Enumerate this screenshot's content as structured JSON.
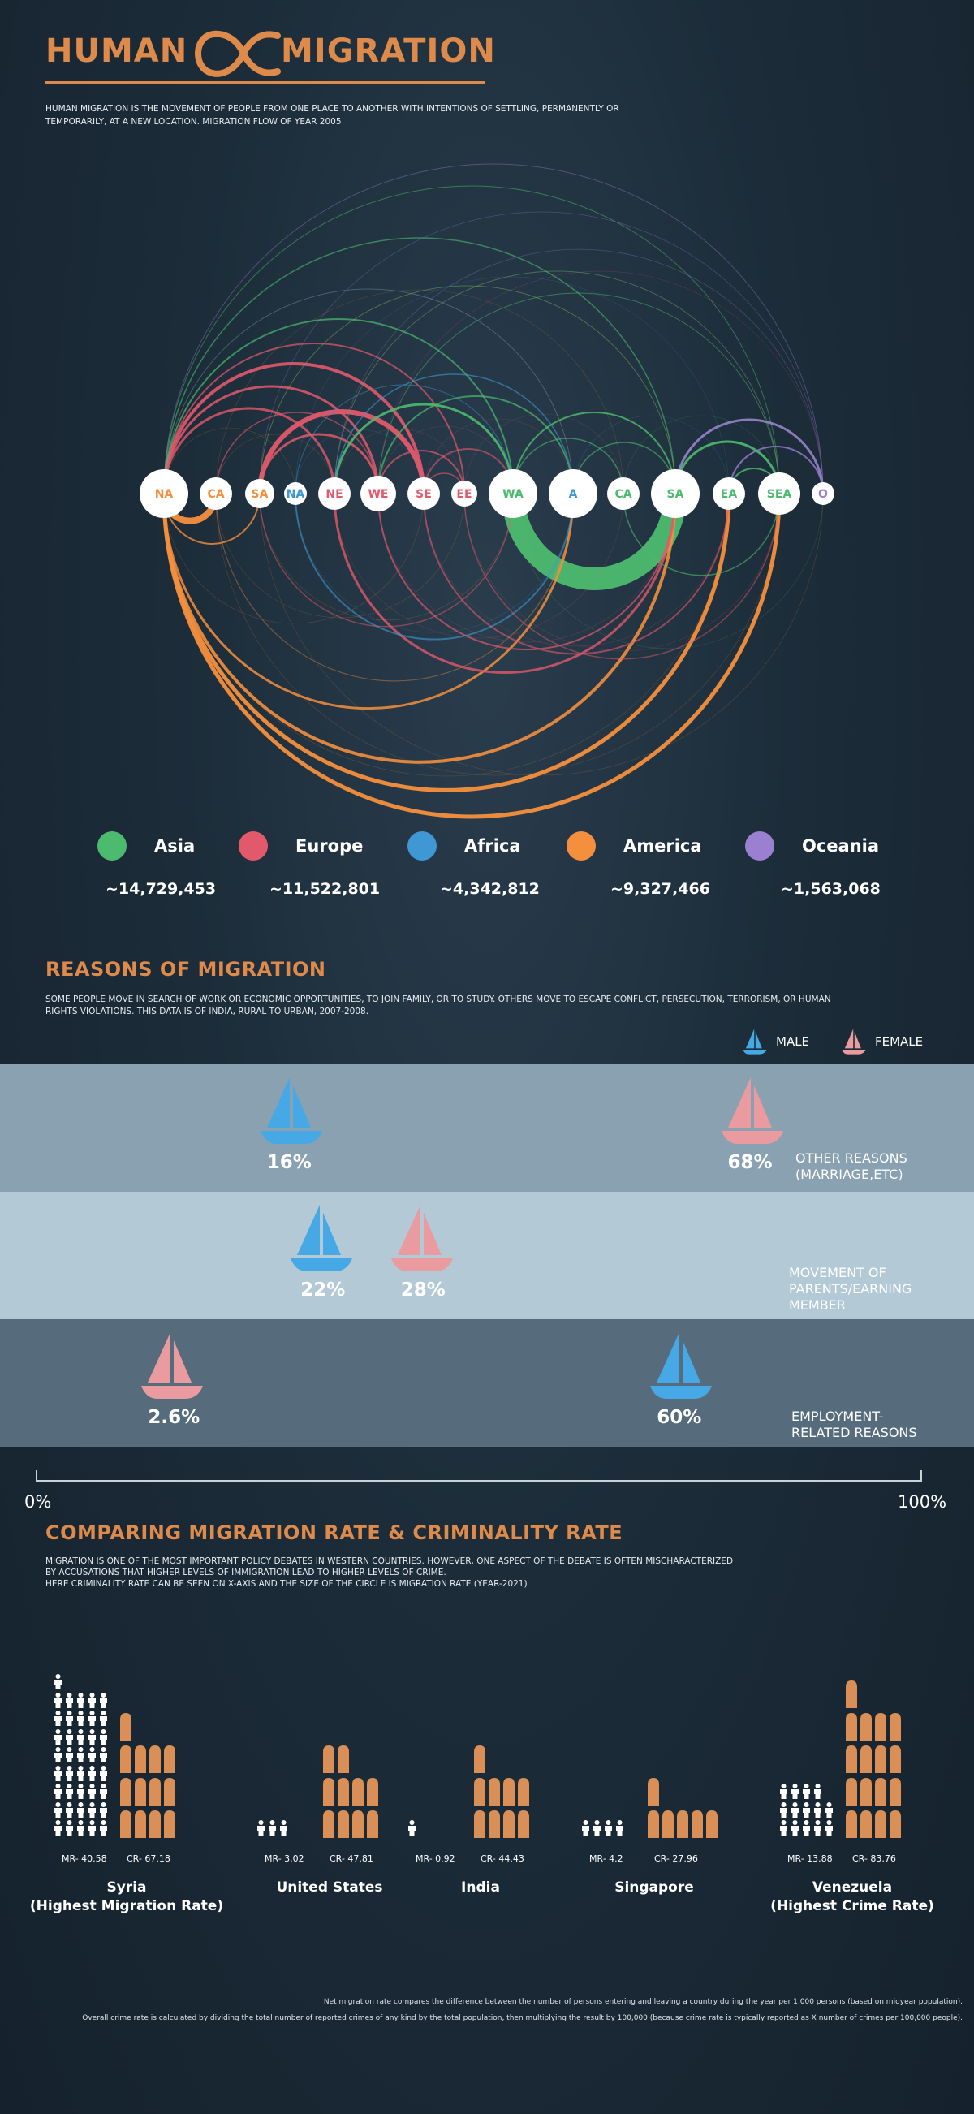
{
  "header": {
    "title_left": "HUMAN",
    "title_right": "MIGRATION",
    "intro": "Human migration is the movement of people from one place to another with intentions of settling, permanently or temporarily, at a new location. Migration flow of year 2005"
  },
  "colors": {
    "asia": "#4dbb6f",
    "europe": "#e2596c",
    "africa": "#3f97d3",
    "america": "#f48f3d",
    "oceania": "#9b7fd0",
    "male_boat": "#46a8e4",
    "female_boat": "#ea9ba0",
    "title_orange": "#de8a4a",
    "band1": "#89a1b1",
    "band2": "#b3c9d6",
    "band3": "#566c7c"
  },
  "chart_data": [
    {
      "type": "arc-diagram",
      "nodes": [
        {
          "label": "NA",
          "region": "america"
        },
        {
          "label": "CA",
          "region": "america"
        },
        {
          "label": "SA",
          "region": "america"
        },
        {
          "label": "NA",
          "region": "africa"
        },
        {
          "label": "NE",
          "region": "europe"
        },
        {
          "label": "WE",
          "region": "europe"
        },
        {
          "label": "SE",
          "region": "europe"
        },
        {
          "label": "EE",
          "region": "europe"
        },
        {
          "label": "WA",
          "region": "asia"
        },
        {
          "label": "A",
          "region": "africa"
        },
        {
          "label": "CA",
          "region": "asia"
        },
        {
          "label": "SA",
          "region": "asia"
        },
        {
          "label": "EA",
          "region": "asia"
        },
        {
          "label": "SEA",
          "region": "asia"
        },
        {
          "label": "O",
          "region": "oceania"
        }
      ],
      "legend": [
        {
          "name": "Asia",
          "total": "~14,729,453",
          "color": "#4dbb6f"
        },
        {
          "name": "Europe",
          "total": "~11,522,801",
          "color": "#e2596c"
        },
        {
          "name": "Africa",
          "total": "~4,342,812",
          "color": "#3f97d3"
        },
        {
          "name": "America",
          "total": "~9,327,466",
          "color": "#f48f3d"
        },
        {
          "name": "Oceania",
          "total": "~1,563,068",
          "color": "#9b7fd0"
        }
      ]
    },
    {
      "type": "bar",
      "title": "REASONS OF MIGRATION",
      "categories": [
        "OTHER REASONS (MARRIAGE,ETC)",
        "MOVEMENT OF PARENTS/EARNING MEMBER",
        "EMPLOYMENT-RELATED REASONS"
      ],
      "series": [
        {
          "name": "MALE",
          "values": [
            16,
            22,
            60
          ]
        },
        {
          "name": "FEMALE",
          "values": [
            68,
            28,
            2.6
          ]
        }
      ],
      "value_labels": {
        "male": [
          "16%",
          "22%",
          "60%"
        ],
        "female": [
          "68%",
          "28%",
          "2.6%"
        ]
      },
      "xlim": [
        0,
        100
      ],
      "axis_min_label": "0%",
      "axis_max_label": "100%"
    },
    {
      "type": "pictogram",
      "title": "COMPARING MIGRATION RATE & CRIMINALITY RATE",
      "countries": [
        {
          "name": "Syria",
          "note": "(Highest Migration Rate)",
          "mr": 40.58,
          "cr": 67.18,
          "mr_label": "MR- 40.58",
          "cr_label": "CR- 67.18"
        },
        {
          "name": "United States",
          "note": "",
          "mr": 3.02,
          "cr": 47.81,
          "mr_label": "MR- 3.02",
          "cr_label": "CR- 47.81"
        },
        {
          "name": "India",
          "note": "",
          "mr": 0.92,
          "cr": 44.43,
          "mr_label": "MR- 0.92",
          "cr_label": "CR- 44.43"
        },
        {
          "name": "Singapore",
          "note": "",
          "mr": 4.2,
          "cr": 27.96,
          "mr_label": "MR- 4.2",
          "cr_label": "CR- 27.96"
        },
        {
          "name": "Venezuela",
          "note": "(Highest Crime Rate)",
          "mr": 13.88,
          "cr": 83.76,
          "mr_label": "MR- 13.88",
          "cr_label": "CR- 83.76"
        }
      ]
    }
  ],
  "reasons": {
    "title": "REASONS OF MIGRATION",
    "desc": "Some people move in search of work or economic opportunities, to join family, or to study. Others move to escape conflict, persecution, terrorism, or human rights violations. This data is of India, rural to urban, 2007-2008.",
    "male_label": "MALE",
    "female_label": "FEMALE",
    "band1_label_a": "OTHER REASONS",
    "band1_label_b": "(MARRIAGE,ETC)",
    "band2_label_a": "MOVEMENT OF",
    "band2_label_b": "PARENTS/EARNING",
    "band2_label_c": "MEMBER",
    "band3_label_a": "EMPLOYMENT-",
    "band3_label_b": "RELATED REASONS",
    "pct_male_1": "16%",
    "pct_female_1": "68%",
    "pct_male_2": "22%",
    "pct_female_2": "28%",
    "pct_female_3": "2.6%",
    "pct_male_3": "60%",
    "axis_min": "0%",
    "axis_max": "100%"
  },
  "crime": {
    "title": "COMPARING MIGRATION RATE & CRIMINALITY RATE",
    "desc_1": "Migration is one of the most important policy debates in western countries. However, one aspect of the debate is often mischaracterized",
    "desc_2": "by accusations that higher levels of immigration lead to higher levels of crime.",
    "desc_3": "Here criminality rate can be seen on x-axis and the size of the circle is migration rate (year-2021)",
    "footnote_1": "Net migration rate compares the difference between the number of persons entering and leaving a country during the year per 1,000 persons (based on midyear population).",
    "footnote_2": "Overall crime rate is calculated by dividing the total number of reported crimes of any kind by the total population, then multiplying the result by 100,000 (because crime rate is typically reported as X number of crimes per 100,000 people)."
  }
}
